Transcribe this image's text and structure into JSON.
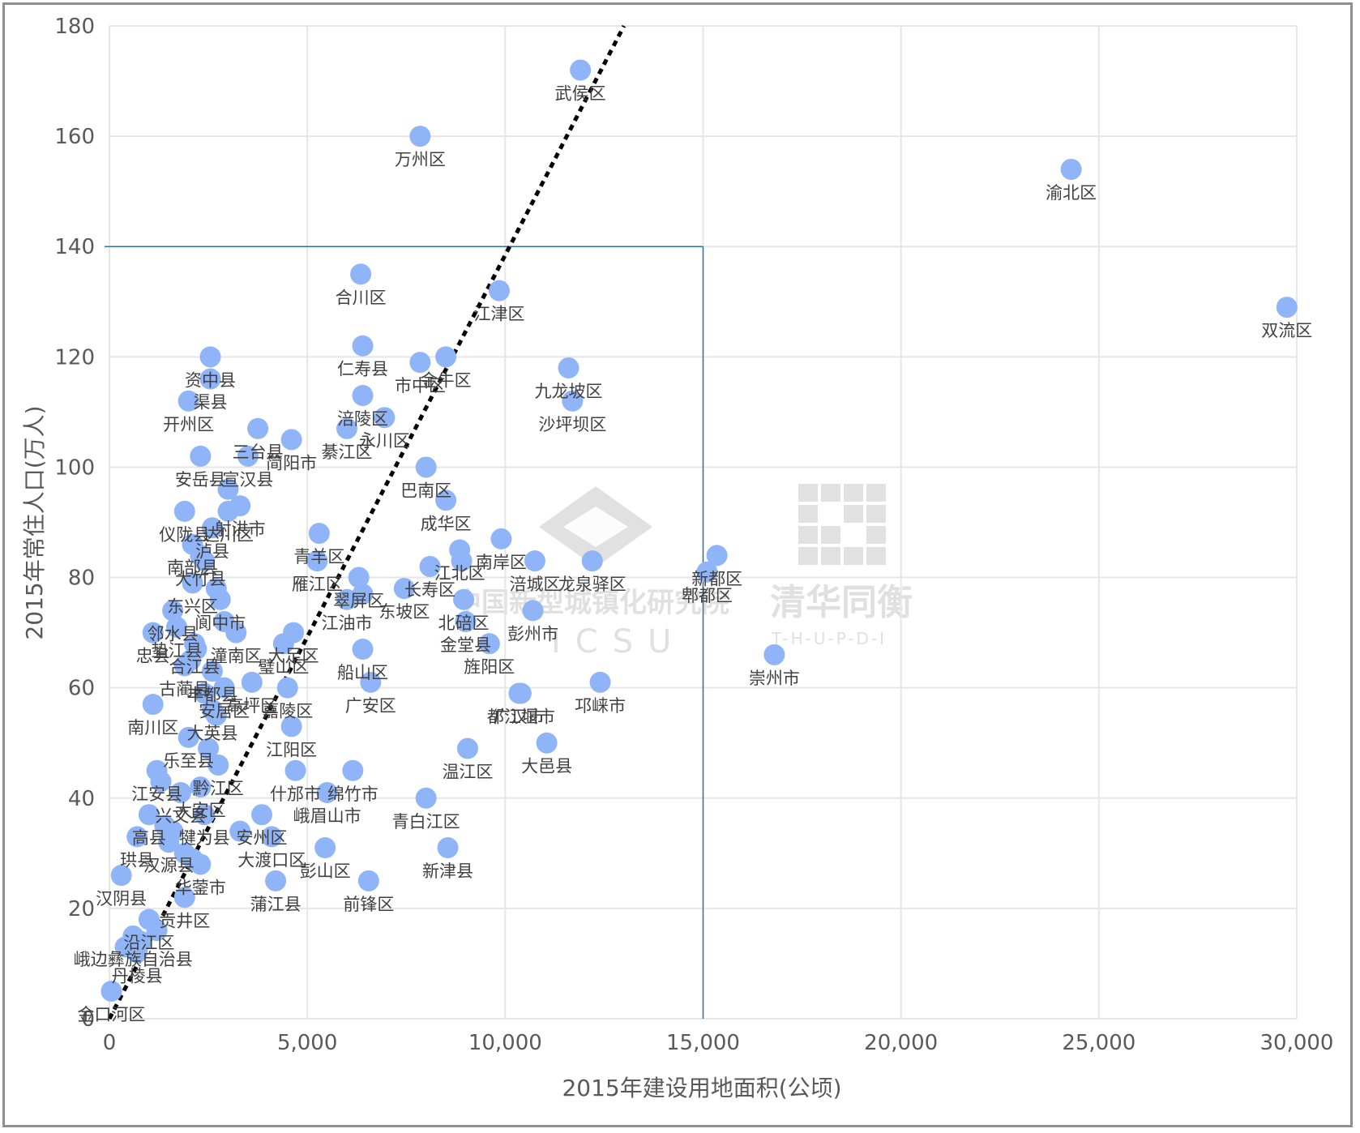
{
  "colors": {
    "point": "#8fb4f7",
    "trend": "#000000",
    "guide": "#2e75b6",
    "grid": "#e6e6e6",
    "label": "#404040",
    "frame": "#8f8f8f"
  },
  "watermark": {
    "text_cn_left": "中国新型城镇化研究院",
    "text_en_left": "ICSU",
    "text_cn_right": "清华同衡",
    "text_en_right": "T-H-U-P-D-I"
  },
  "chart_data": {
    "type": "scatter",
    "title": "",
    "xlabel": "2015年建设用地面积(公顷)",
    "ylabel": "2015年常住人口(万人)",
    "xlim": [
      0,
      30000
    ],
    "ylim": [
      0,
      180
    ],
    "xticks": [
      0,
      5000,
      10000,
      15000,
      20000,
      25000,
      30000
    ],
    "xtick_labels": [
      "0",
      "5,000",
      "10,000",
      "15,000",
      "20,000",
      "25,000",
      "30,000"
    ],
    "yticks": [
      0,
      20,
      40,
      60,
      80,
      100,
      120,
      140,
      160,
      180
    ],
    "ytick_labels": [
      "0",
      "20",
      "40",
      "60",
      "80",
      "100",
      "120",
      "140",
      "160",
      "180"
    ],
    "grid": true,
    "trendline": {
      "style": "dotted",
      "from": [
        0,
        0
      ],
      "to": [
        13000,
        180
      ]
    },
    "guide_lines": {
      "horizontal_y": 140,
      "vertical_x": 15000,
      "x_from": 0,
      "y_from": 0
    },
    "points": [
      {
        "name": "武侯区",
        "x": 11900,
        "y": 172
      },
      {
        "name": "万州区",
        "x": 7850,
        "y": 160
      },
      {
        "name": "渝北区",
        "x": 24300,
        "y": 154
      },
      {
        "name": "双流区",
        "x": 29750,
        "y": 129
      },
      {
        "name": "合川区",
        "x": 6350,
        "y": 135
      },
      {
        "name": "江津区",
        "x": 9850,
        "y": 132
      },
      {
        "name": "资中县",
        "x": 2550,
        "y": 120
      },
      {
        "name": "渠县",
        "x": 2550,
        "y": 116
      },
      {
        "name": "开州区",
        "x": 2000,
        "y": 112
      },
      {
        "name": "安岳县",
        "x": 2300,
        "y": 102
      },
      {
        "name": "三台县",
        "x": 3750,
        "y": 107
      },
      {
        "name": "宣汉县",
        "x": 3500,
        "y": 102
      },
      {
        "name": "市中区",
        "x": 7850,
        "y": 119
      },
      {
        "name": "仁寿县",
        "x": 6400,
        "y": 122
      },
      {
        "name": "金牛区",
        "x": 8500,
        "y": 120
      },
      {
        "name": "涪陵区",
        "x": 6400,
        "y": 113
      },
      {
        "name": "永川区",
        "x": 6950,
        "y": 109
      },
      {
        "name": "綦江区",
        "x": 6000,
        "y": 107
      },
      {
        "name": "九龙坡区",
        "x": 11600,
        "y": 118
      },
      {
        "name": "沙坪坝区",
        "x": 11700,
        "y": 112
      },
      {
        "name": "简阳市",
        "x": 4600,
        "y": 105
      },
      {
        "name": "巴南区",
        "x": 8000,
        "y": 100
      },
      {
        "name": "仪陇县",
        "x": 1900,
        "y": 92
      },
      {
        "name": "达川区",
        "x": 3000,
        "y": 92
      },
      {
        "name": "射洪市",
        "x": 3300,
        "y": 93
      },
      {
        "name": "泸县",
        "x": 2600,
        "y": 89
      },
      {
        "name": "南部县",
        "x": 2100,
        "y": 86
      },
      {
        "name": "青羊区",
        "x": 5300,
        "y": 88
      },
      {
        "name": "大竹县",
        "x": 2300,
        "y": 84
      },
      {
        "name": "雁江区",
        "x": 5250,
        "y": 83
      },
      {
        "name": "成华区",
        "x": 8500,
        "y": 94
      },
      {
        "name": "江北区",
        "x": 8850,
        "y": 85
      },
      {
        "name": "南岸区",
        "x": 9900,
        "y": 87
      },
      {
        "name": "龙泉驿区",
        "x": 12200,
        "y": 83
      },
      {
        "name": "涪城区",
        "x": 10750,
        "y": 83
      },
      {
        "name": "东兴区",
        "x": 2100,
        "y": 79
      },
      {
        "name": "翠屏区",
        "x": 6300,
        "y": 80
      },
      {
        "name": "长寿区",
        "x": 8100,
        "y": 82
      },
      {
        "name": "东坡区",
        "x": 7450,
        "y": 78
      },
      {
        "name": "邻水县",
        "x": 1600,
        "y": 74
      },
      {
        "name": "阆中市",
        "x": 2800,
        "y": 76
      },
      {
        "name": "江油市",
        "x": 6000,
        "y": 76
      },
      {
        "name": "北碚区",
        "x": 8950,
        "y": 76
      },
      {
        "name": "彭州市",
        "x": 10700,
        "y": 74
      },
      {
        "name": "忠县",
        "x": 1100,
        "y": 70
      },
      {
        "name": "垫江县",
        "x": 1700,
        "y": 71
      },
      {
        "name": "潼南区",
        "x": 3200,
        "y": 70
      },
      {
        "name": "大足区",
        "x": 4650,
        "y": 70
      },
      {
        "name": "合江县",
        "x": 2150,
        "y": 68
      },
      {
        "name": "璧山区",
        "x": 4400,
        "y": 68
      },
      {
        "name": "金堂县",
        "x": 9000,
        "y": 72
      },
      {
        "name": "旌阳区",
        "x": 9600,
        "y": 68
      },
      {
        "name": "古蔺县",
        "x": 1900,
        "y": 64
      },
      {
        "name": "丰都县",
        "x": 2600,
        "y": 63
      },
      {
        "name": "船山区",
        "x": 6400,
        "y": 67
      },
      {
        "name": "安居区",
        "x": 2900,
        "y": 60
      },
      {
        "name": "南川区",
        "x": 1100,
        "y": 57
      },
      {
        "name": "高坪区",
        "x": 3600,
        "y": 61
      },
      {
        "name": "嘉陵区",
        "x": 4500,
        "y": 60
      },
      {
        "name": "广安区",
        "x": 6600,
        "y": 61
      },
      {
        "name": "都江堰市",
        "x": 10400,
        "y": 59
      },
      {
        "name": "邛崃市",
        "x": 12400,
        "y": 61
      },
      {
        "name": "崇州市",
        "x": 16800,
        "y": 66
      },
      {
        "name": "乐至县",
        "x": 2000,
        "y": 51
      },
      {
        "name": "大英县",
        "x": 2600,
        "y": 56
      },
      {
        "name": "江阳区",
        "x": 4600,
        "y": 53
      },
      {
        "name": "绵竹市",
        "x": 6150,
        "y": 45
      },
      {
        "name": "广汉市",
        "x": 10350,
        "y": 59
      },
      {
        "name": "大邑县",
        "x": 11050,
        "y": 50
      },
      {
        "name": "温江区",
        "x": 9050,
        "y": 49
      },
      {
        "name": "江安县",
        "x": 1200,
        "y": 45
      },
      {
        "name": "黔江区",
        "x": 2750,
        "y": 46
      },
      {
        "name": "什邡市",
        "x": 4700,
        "y": 45
      },
      {
        "name": "兴文县",
        "x": 1800,
        "y": 41
      },
      {
        "name": "大安区",
        "x": 2300,
        "y": 42
      },
      {
        "name": "峨眉山市",
        "x": 5500,
        "y": 41
      },
      {
        "name": "高县",
        "x": 1000,
        "y": 37
      },
      {
        "name": "犍为县",
        "x": 2400,
        "y": 37
      },
      {
        "name": "安州区",
        "x": 3850,
        "y": 37
      },
      {
        "name": "青白江区",
        "x": 8000,
        "y": 40
      },
      {
        "name": "珙县",
        "x": 700,
        "y": 33
      },
      {
        "name": "汉源县",
        "x": 1500,
        "y": 32
      },
      {
        "name": "大渡口区",
        "x": 4100,
        "y": 33
      },
      {
        "name": "彭山区",
        "x": 5450,
        "y": 31
      },
      {
        "name": "新津县",
        "x": 8550,
        "y": 31
      },
      {
        "name": "华蓥市",
        "x": 2300,
        "y": 28
      },
      {
        "name": "汉阴县",
        "x": 300,
        "y": 26
      },
      {
        "name": "蒲江县",
        "x": 4200,
        "y": 25
      },
      {
        "name": "前锋区",
        "x": 6550,
        "y": 25
      },
      {
        "name": "贡井区",
        "x": 1900,
        "y": 22
      },
      {
        "name": "沿江区",
        "x": 1000,
        "y": 18
      },
      {
        "name": "峨边彝族自治县",
        "x": 600,
        "y": 15
      },
      {
        "name": "丹棱县",
        "x": 700,
        "y": 12
      },
      {
        "name": "金口河区",
        "x": 50,
        "y": 5
      },
      {
        "name": "新都区",
        "x": 15350,
        "y": 84
      },
      {
        "name": "郫都区",
        "x": 15100,
        "y": 81
      }
    ],
    "extra_points": [
      {
        "x": 2050,
        "y": 65
      },
      {
        "x": 2200,
        "y": 67
      },
      {
        "x": 2400,
        "y": 59
      },
      {
        "x": 2500,
        "y": 49
      },
      {
        "x": 2700,
        "y": 55
      },
      {
        "x": 1300,
        "y": 43
      },
      {
        "x": 1600,
        "y": 34
      },
      {
        "x": 1900,
        "y": 30
      },
      {
        "x": 2100,
        "y": 29
      },
      {
        "x": 1200,
        "y": 16
      },
      {
        "x": 400,
        "y": 13
      },
      {
        "x": 800,
        "y": 14
      },
      {
        "x": 1400,
        "y": 35
      },
      {
        "x": 2400,
        "y": 83
      },
      {
        "x": 2700,
        "y": 78
      },
      {
        "x": 3000,
        "y": 96
      },
      {
        "x": 2900,
        "y": 72
      },
      {
        "x": 6400,
        "y": 77
      },
      {
        "x": 8900,
        "y": 83
      },
      {
        "x": 3300,
        "y": 34
      }
    ]
  }
}
